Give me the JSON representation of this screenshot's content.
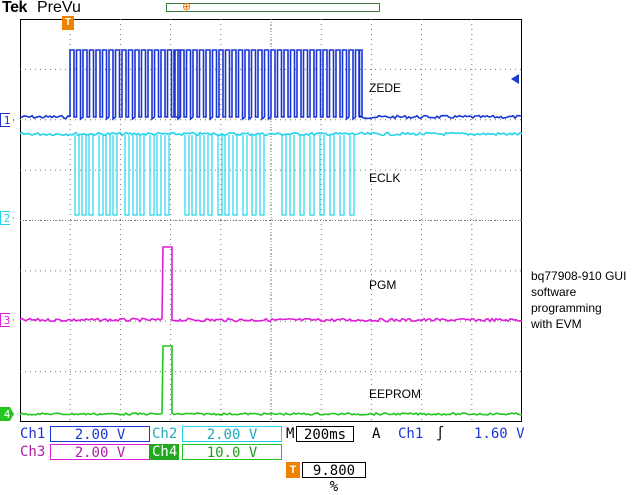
{
  "header": {
    "brand": "Tek",
    "mode": "PreVu"
  },
  "colors": {
    "ch1": "#1a35d6",
    "ch2": "#22d4ec",
    "ch3": "#de1ed6",
    "ch4": "#22c61e",
    "trigger": "#f08000"
  },
  "channels": [
    {
      "id": "1",
      "name": "ZEDE"
    },
    {
      "id": "2",
      "name": "ECLK"
    },
    {
      "id": "3",
      "name": "PGM"
    },
    {
      "id": "4",
      "name": "EEPROM"
    }
  ],
  "annotation": [
    "bq77908-910 GUI",
    "software",
    "programming",
    "with EVM"
  ],
  "trigger_icon": "T",
  "status": {
    "ch1_label": "Ch1",
    "ch1_scale": "2.00 V",
    "ch2_label": "Ch2",
    "ch2_scale": "2.00 V",
    "ch3_label": "Ch3",
    "ch3_scale": "2.00 V",
    "ch4_label": "Ch4",
    "ch4_scale": "10.0 V",
    "timebase_label": "M",
    "timebase": "200ms",
    "acq_label": "A",
    "trig_source": "Ch1",
    "trig_level": "1.60 V",
    "trig_position": "9.800 %"
  }
}
